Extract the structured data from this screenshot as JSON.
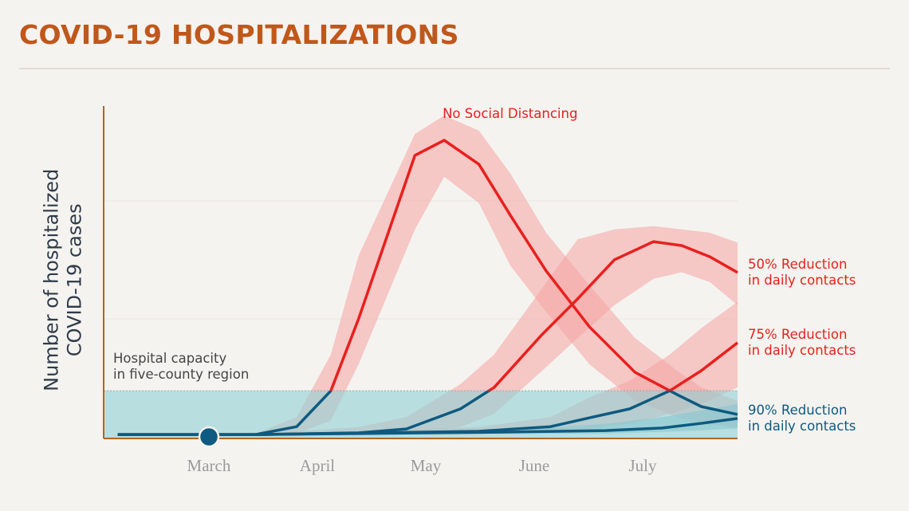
{
  "chart_data": {
    "type": "line",
    "title": "COVID-19 HOSPITALIZATIONS",
    "y_label": "Number of hospitalized\nCOVID-19 cases",
    "xlim": [
      -0.97,
      4.875
    ],
    "ylim": [
      0,
      100
    ],
    "xticks": [
      {
        "value": 0,
        "label": "March"
      },
      {
        "value": 1,
        "label": "April"
      },
      {
        "value": 2,
        "label": "May"
      },
      {
        "value": 3,
        "label": "June"
      },
      {
        "value": 4,
        "label": "July"
      }
    ],
    "capacity": 14,
    "capacity_label": "Hospital capacity\nin five-county region",
    "capacity_color": "#8fd0d6",
    "below_capacity_color": "#0e5a80",
    "series": [
      {
        "name": "No Social Distancing",
        "color": "#e8201e",
        "band_color": "#f4a3a3",
        "x": [
          -0.84,
          0.43,
          0.81,
          1.125,
          1.38,
          1.9,
          2.17,
          2.49,
          2.78,
          3.11,
          3.51,
          3.93,
          4.32,
          4.54,
          4.875
        ],
        "values": [
          0.7,
          0.7,
          3.1,
          14,
          35.8,
          85.5,
          90.1,
          82.8,
          67.3,
          50.4,
          33.4,
          19.6,
          12.8,
          9.2,
          6.8
        ],
        "upper": [
          0.7,
          1,
          6,
          25,
          55,
          92,
          97.6,
          93,
          80,
          62,
          46,
          30,
          20,
          15,
          11
        ],
        "lower": [
          0.7,
          0.5,
          1,
          5,
          22,
          63,
          79,
          71,
          52,
          38,
          22,
          11,
          6,
          4,
          3
        ]
      },
      {
        "name": "50% Reduction\nin daily contacts",
        "color": "#e8201e",
        "band_color": "#f4a3a3",
        "x": [
          -0.84,
          0.43,
          1.38,
          1.82,
          2.32,
          2.63,
          3.07,
          3.4,
          3.74,
          4.1,
          4.36,
          4.62,
          4.875
        ],
        "values": [
          0.7,
          0.7,
          1.2,
          2.4,
          8.5,
          15,
          31,
          41.9,
          53.8,
          59.3,
          58.1,
          54.7,
          49.9
        ],
        "upper": [
          0.7,
          0.8,
          3,
          6,
          16,
          25,
          45,
          60,
          63,
          64,
          63,
          62,
          59
        ],
        "lower": [
          0.7,
          0.6,
          0.5,
          1,
          3,
          7,
          20,
          30,
          40,
          48,
          50,
          47,
          40
        ]
      },
      {
        "name": "75% Reduction\nin daily contacts",
        "color": "#e8201e",
        "band_color": "#f4a3a3",
        "x": [
          -0.84,
          0.43,
          2.49,
          3.15,
          3.51,
          3.88,
          4.25,
          4.54,
          4.875
        ],
        "values": [
          0.7,
          0.7,
          1.7,
          3.1,
          5.8,
          8.5,
          14,
          20.1,
          28.6
        ],
        "upper": [
          0.7,
          0.8,
          3,
          6,
          12,
          17,
          25,
          33,
          41
        ],
        "lower": [
          0.7,
          0.6,
          0.8,
          1.5,
          2.5,
          4,
          7,
          10,
          15
        ]
      },
      {
        "name": "90% Reduction\nin daily contacts",
        "color": "#0e5a80",
        "band_color": "#6fb6c4",
        "x": [
          -0.84,
          0.43,
          2.85,
          3.66,
          4.18,
          4.54,
          4.875
        ],
        "values": [
          0.7,
          0.7,
          1.5,
          1.9,
          2.7,
          4.1,
          5.6
        ],
        "upper": [
          0.7,
          0.8,
          2,
          4,
          6,
          8,
          10
        ],
        "lower": [
          0.7,
          0.6,
          1,
          1,
          1.5,
          2,
          2.5
        ]
      }
    ]
  }
}
